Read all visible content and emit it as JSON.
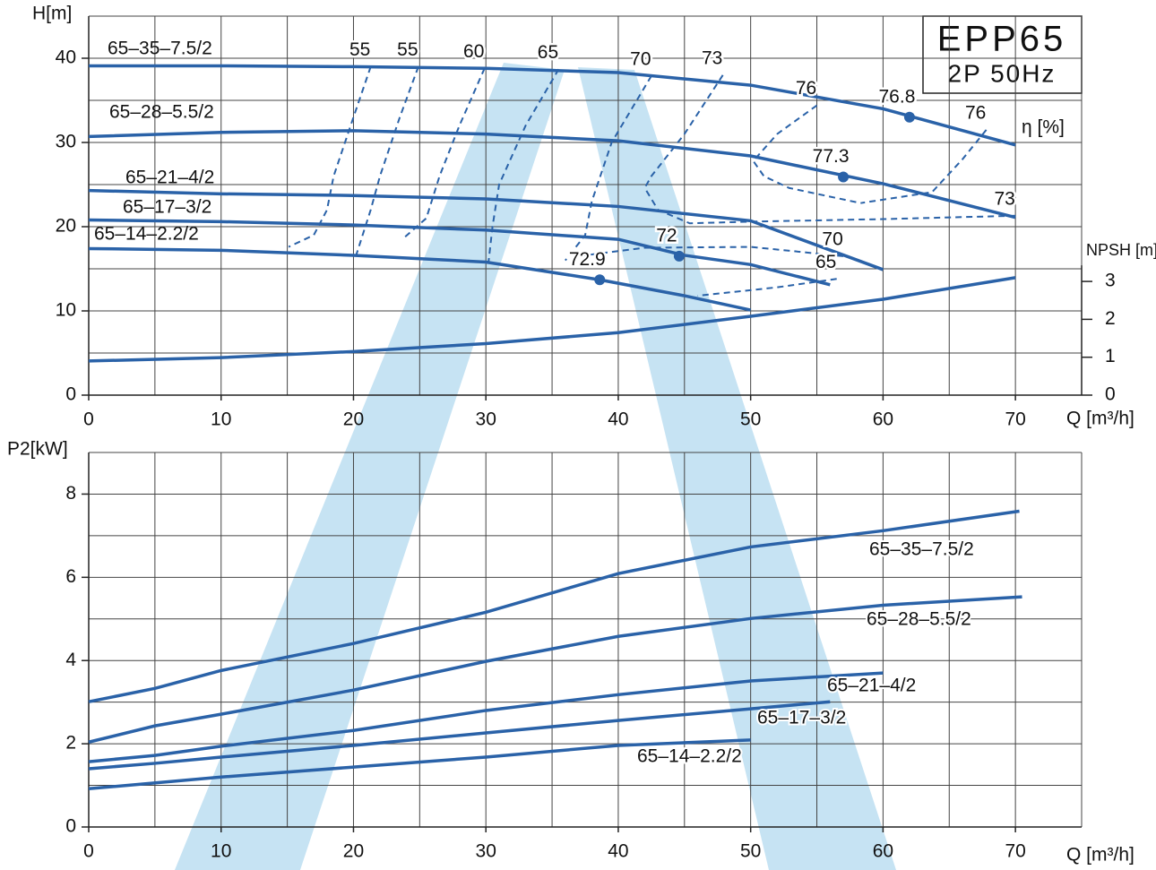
{
  "chart_data": [
    {
      "type": "line",
      "title": "EPP65",
      "subtitle": "2P 50Hz",
      "xlabel": "Q [m³/h]",
      "ylabel": "H[m]",
      "y2label": "NPSH [m]",
      "efficiency_label": "η [%]",
      "xlim": [
        0,
        75
      ],
      "ylim": [
        0,
        45
      ],
      "y2lim": [
        0,
        10
      ],
      "xticks": [
        0,
        10,
        20,
        30,
        40,
        50,
        60,
        70
      ],
      "yticks": [
        0,
        10,
        20,
        30,
        40
      ],
      "y2ticks": [
        0,
        1,
        2,
        3
      ],
      "xgrid": [
        0,
        5,
        10,
        15,
        20,
        25,
        30,
        35,
        40,
        45,
        50,
        55,
        60,
        65,
        70,
        75
      ],
      "ygrid": [
        0,
        5,
        10,
        15,
        20,
        25,
        30,
        35,
        40,
        45
      ],
      "color": "#2a62a8",
      "series": [
        {
          "name": "65–35–7.5/2",
          "x": [
            0,
            10,
            20,
            30,
            40,
            50,
            60,
            70
          ],
          "values": [
            39.1,
            39.1,
            39,
            38.8,
            38.3,
            36.8,
            34,
            29.7
          ]
        },
        {
          "name": "65–28–5.5/2",
          "x": [
            0,
            10,
            20,
            30,
            40,
            50,
            60,
            70
          ],
          "values": [
            30.7,
            31.2,
            31.4,
            31,
            30.2,
            28.4,
            25.1,
            21.1
          ]
        },
        {
          "name": "65–21–4/2",
          "x": [
            0,
            10,
            20,
            30,
            40,
            50,
            60
          ],
          "values": [
            24.3,
            23.9,
            23.7,
            23.3,
            22.4,
            20.7,
            14.9
          ]
        },
        {
          "name": "65–17–3/2",
          "x": [
            0,
            10,
            20,
            30,
            40,
            45,
            50,
            56
          ],
          "values": [
            20.8,
            20.6,
            20.2,
            19.6,
            18.5,
            16.6,
            15.5,
            13.1
          ]
        },
        {
          "name": "65–14–2.2/2",
          "x": [
            0,
            10,
            20,
            30,
            38.6,
            45,
            50
          ],
          "values": [
            17.4,
            17.2,
            16.6,
            15.8,
            13.7,
            11.8,
            10.1
          ]
        },
        {
          "axis": "y2",
          "x": [
            0,
            10,
            20,
            30,
            40,
            50,
            60,
            70
          ],
          "values": [
            0.9,
            0.99,
            1.15,
            1.36,
            1.65,
            2.08,
            2.53,
            3.1
          ]
        }
      ],
      "efficiency_curves": [
        {
          "eta": 55,
          "x": [
            21.3,
            20,
            18.5,
            18,
            17,
            15.1
          ],
          "y": [
            39,
            33,
            26,
            22,
            19,
            17.6
          ]
        },
        {
          "eta": 55,
          "x": [
            24.9,
            23.5,
            22,
            21.3,
            20.2
          ],
          "y": [
            39,
            33,
            26,
            22,
            16.6
          ]
        },
        {
          "eta": 60,
          "x": [
            29.9,
            28,
            26.5,
            25.5,
            23.9
          ],
          "y": [
            38.8,
            32,
            26,
            21,
            18.8
          ]
        },
        {
          "eta": 65,
          "x": [
            35.5,
            33,
            31,
            30.5,
            30.2
          ],
          "y": [
            38.7,
            32,
            25,
            20,
            15.8
          ]
        },
        {
          "eta": 70,
          "x": [
            42.5,
            39.5,
            38,
            37.5,
            36
          ],
          "y": [
            37.9,
            30,
            23,
            19,
            16
          ]
        },
        {
          "eta": 73,
          "x": [
            47.9,
            45,
            42.5,
            42
          ],
          "y": [
            38,
            31,
            26,
            24.6
          ]
        },
        {
          "eta": 76,
          "x": [
            55,
            52,
            50.2,
            51,
            52.9,
            58.3
          ],
          "y": [
            34.4,
            31,
            27.8,
            26,
            24.6,
            22.8
          ]
        },
        {
          "eta": 76,
          "x": [
            67.8,
            66,
            63.7,
            58.3
          ],
          "y": [
            31.5,
            28,
            24.1,
            22.8
          ]
        },
        {
          "eta": 73,
          "x": [
            70,
            60,
            50,
            45.4,
            43,
            42
          ],
          "y": [
            21.3,
            20.9,
            20.6,
            20.4,
            22,
            24.6
          ]
        },
        {
          "eta": 70,
          "x": [
            57,
            50,
            42,
            37
          ],
          "y": [
            16.5,
            17.6,
            17.5,
            16.5
          ]
        },
        {
          "eta": 65,
          "x": [
            56.5,
            52,
            46
          ],
          "y": [
            13.8,
            12.8,
            11.8
          ]
        }
      ],
      "points": [
        {
          "eta": 76.8,
          "x": 62,
          "y": 33
        },
        {
          "eta": 77.3,
          "x": 57,
          "y": 25.9
        },
        {
          "eta": 72,
          "x": 44.6,
          "y": 16.5
        },
        {
          "eta": 72.9,
          "x": 38.6,
          "y": 13.7
        }
      ]
    },
    {
      "type": "line",
      "xlabel": "Q [m³/h]",
      "ylabel": "P2[kW]",
      "xlim": [
        0,
        75
      ],
      "ylim": [
        0,
        9
      ],
      "xticks": [
        0,
        10,
        20,
        30,
        40,
        50,
        60,
        70
      ],
      "yticks": [
        0,
        2,
        4,
        6,
        8
      ],
      "xgrid": [
        0,
        5,
        10,
        15,
        20,
        25,
        30,
        35,
        40,
        45,
        50,
        55,
        60,
        65,
        70,
        75
      ],
      "ygrid": [
        0,
        1,
        2,
        3,
        4,
        5,
        6,
        7,
        8,
        9
      ],
      "color": "#2a62a8",
      "series": [
        {
          "name": "65–35–7.5/2",
          "x": [
            0,
            5,
            10,
            20,
            30,
            40,
            50,
            60,
            70.3
          ],
          "values": [
            3.01,
            3.33,
            3.76,
            4.41,
            5.16,
            6.09,
            6.73,
            7.12,
            7.59
          ]
        },
        {
          "name": "65–28–5.5/2",
          "x": [
            0,
            5,
            10,
            20,
            30,
            40,
            50,
            60,
            70.5
          ],
          "values": [
            2.04,
            2.43,
            2.71,
            3.29,
            3.98,
            4.58,
            5.01,
            5.33,
            5.53
          ]
        },
        {
          "name": "65–21–4/2",
          "x": [
            0,
            5,
            10,
            20,
            30,
            40,
            50,
            60
          ],
          "values": [
            1.57,
            1.72,
            1.94,
            2.32,
            2.8,
            3.18,
            3.51,
            3.7
          ]
        },
        {
          "name": "65–17–3/2",
          "x": [
            0,
            5,
            10,
            20,
            30,
            40,
            50,
            56
          ],
          "values": [
            1.4,
            1.53,
            1.68,
            1.96,
            2.26,
            2.56,
            2.84,
            3.01
          ]
        },
        {
          "name": "65–14–2.2/2",
          "x": [
            0,
            4,
            10,
            20,
            30,
            40,
            50
          ],
          "values": [
            0.92,
            1.03,
            1.2,
            1.44,
            1.68,
            1.96,
            2.09
          ]
        }
      ]
    }
  ]
}
